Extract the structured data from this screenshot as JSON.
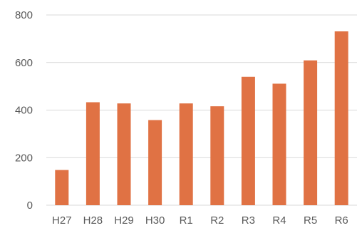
{
  "chart_data": {
    "type": "bar",
    "title": "",
    "xlabel": "",
    "ylabel": "",
    "categories": [
      "H27",
      "H28",
      "H29",
      "H30",
      "R1",
      "R2",
      "R3",
      "R4",
      "R5",
      "R6"
    ],
    "values": [
      148,
      433,
      428,
      358,
      428,
      416,
      540,
      511,
      609,
      731
    ],
    "ylim": [
      0,
      800
    ],
    "yticks": [
      0,
      200,
      400,
      600,
      800
    ],
    "grid": true,
    "legend": "none",
    "bar_color": "#E07244",
    "grid_color": "#D9D9D9"
  }
}
